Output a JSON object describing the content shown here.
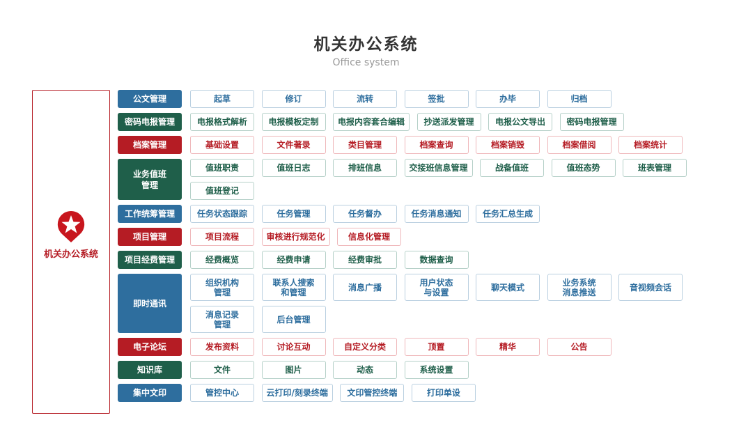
{
  "header": {
    "title": "机关办公系统",
    "subtitle": "Office system"
  },
  "brand": {
    "name": "机关办公系统",
    "icon": "star-pin-icon",
    "color": "#b51c24"
  },
  "colors": {
    "blue": "#2e6e9e",
    "green": "#1f5f4a",
    "red": "#b51c24"
  },
  "categories": [
    {
      "label": "公文管理",
      "theme": "blue",
      "items": [
        "起草",
        "修订",
        "流转",
        "签批",
        "办毕",
        "归档"
      ]
    },
    {
      "label": "密码电报管理",
      "theme": "green",
      "items": [
        "电报格式解析",
        "电报模板定制",
        "电报内容套合编辑",
        "抄送派发管理",
        "电报公文导出",
        "密码电报管理"
      ]
    },
    {
      "label": "档案管理",
      "theme": "red",
      "items": [
        "基础设置",
        "文件著录",
        "类目管理",
        "档案查询",
        "档案销毁",
        "档案借阅",
        "档案统计"
      ]
    },
    {
      "label": "业务值班\n管理",
      "theme": "green",
      "items": [
        "值班职责",
        "值班日志",
        "排班信息",
        "交接班信息管理",
        "战备值班",
        "值班态势",
        "班表管理",
        "值班登记"
      ]
    },
    {
      "label": "工作统筹管理",
      "theme": "blue",
      "items": [
        "任务状态跟踪",
        "任务管理",
        "任务督办",
        "任务消息通知",
        "任务汇总生成"
      ]
    },
    {
      "label": "项目管理",
      "theme": "red",
      "items": [
        "项目流程",
        "审核进行规范化",
        "信息化管理"
      ]
    },
    {
      "label": "项目经费管理",
      "theme": "green",
      "items": [
        "经费概览",
        "经费申请",
        "经费审批",
        "数据查询"
      ]
    },
    {
      "label": "即时通讯",
      "theme": "blue",
      "tall": true,
      "items": [
        "组织机构\n管理",
        "联系人搜索\n和管理",
        "消息广播",
        "用户状态\n与设置",
        "聊天模式",
        "业务系统\n消息推送",
        "音视频会话",
        "消息记录\n管理",
        "后台管理"
      ]
    },
    {
      "label": "电子论坛",
      "theme": "red",
      "items": [
        "发布资料",
        "讨论互动",
        "自定义分类",
        "顶置",
        "精华",
        "公告"
      ]
    },
    {
      "label": "知识库",
      "theme": "green",
      "items": [
        "文件",
        "图片",
        "动态",
        "系统设置"
      ]
    },
    {
      "label": "集中文印",
      "theme": "blue",
      "items": [
        "管控中心",
        "云打印/刻录终端",
        "文印管控终端",
        "打印单设"
      ]
    }
  ]
}
